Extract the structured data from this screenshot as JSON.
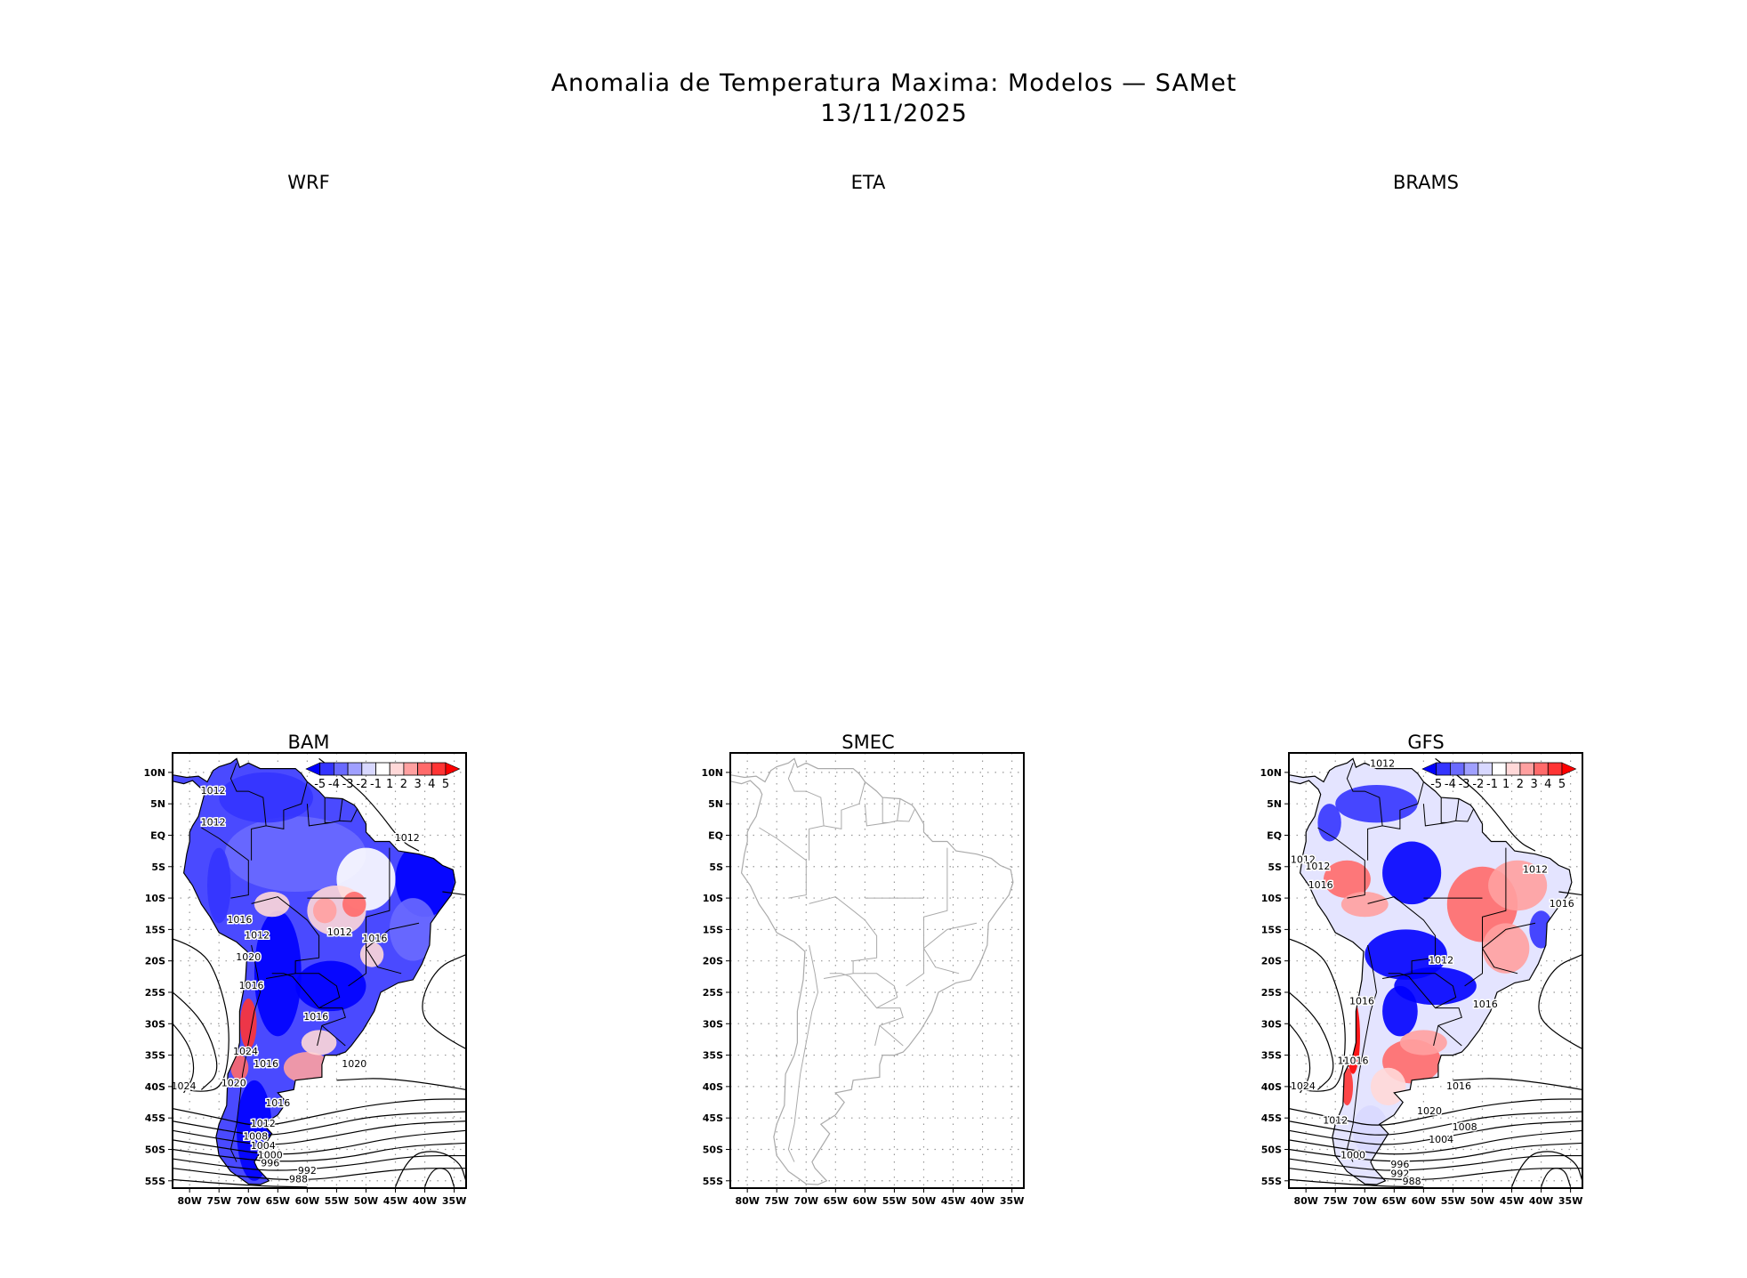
{
  "title": "Anomalia de Temperatura Maxima: Modelos — SAMet",
  "date": "13/11/2025",
  "panels": [
    {
      "name": "WRF",
      "has_map": false
    },
    {
      "name": "ETA",
      "has_map": false
    },
    {
      "name": "BRAMS",
      "has_map": false
    },
    {
      "name": "BAM",
      "has_map": true,
      "filled": true,
      "colorbar": true,
      "contour_labels": [
        "1012",
        "1012",
        "1012",
        "1016",
        "1012",
        "1012",
        "1016",
        "1020",
        "1016",
        "1016",
        "1024",
        "1016",
        "1020",
        "1024",
        "1020",
        "1016",
        "1012",
        "1008",
        "1004",
        "1000",
        "996",
        "992",
        "988"
      ]
    },
    {
      "name": "SMEC",
      "has_map": true,
      "filled": false,
      "colorbar": false,
      "contour_labels": []
    },
    {
      "name": "GFS",
      "has_map": true,
      "filled": true,
      "colorbar": true,
      "contour_labels": [
        "1012",
        "1012",
        "1012",
        "1016",
        "1012",
        "1016",
        "1012",
        "1016",
        "1016",
        "11016",
        "1016",
        "1024",
        "1012",
        "1020",
        "1008",
        "1004",
        "1000",
        "996",
        "992",
        "988"
      ]
    }
  ],
  "lat_ticks": [
    "10N",
    "5N",
    "EQ",
    "5S",
    "10S",
    "15S",
    "20S",
    "25S",
    "30S",
    "35S",
    "40S",
    "45S",
    "50S",
    "55S"
  ],
  "lon_ticks": [
    "80W",
    "75W",
    "70W",
    "65W",
    "60W",
    "55W",
    "50W",
    "45W",
    "40W",
    "35W"
  ],
  "colorbar": {
    "labels": [
      "-5",
      "-4",
      "-3",
      "-2",
      "-1",
      "1",
      "2",
      "3",
      "4",
      "5"
    ],
    "colors": [
      "#0000ff",
      "#3434ff",
      "#6a6aff",
      "#a0a0ff",
      "#d8d8ff",
      "#ffffff",
      "#ffd8d8",
      "#ffa0a0",
      "#ff6a6a",
      "#ff3434",
      "#ff0000"
    ]
  }
}
